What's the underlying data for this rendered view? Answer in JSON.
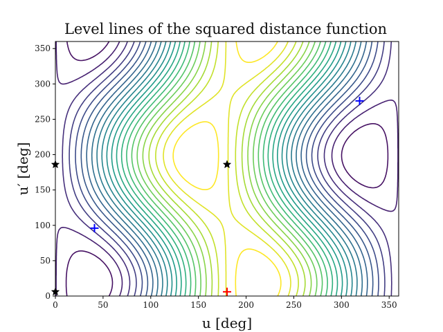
{
  "chart_data": {
    "type": "contour",
    "title": "Level lines of the squared distance function",
    "xlabel": "u [deg]",
    "ylabel": "u′ [deg]",
    "xlim": [
      0,
      360
    ],
    "ylim": [
      0,
      360
    ],
    "xticks": [
      0,
      50,
      100,
      150,
      200,
      250,
      300,
      350
    ],
    "yticks": [
      0,
      50,
      100,
      150,
      200,
      250,
      300,
      350
    ],
    "colormap": "viridis",
    "level_count": 22,
    "grid": false,
    "markers": [
      {
        "kind": "plus",
        "color": "#0000ff",
        "x": 41,
        "y": 96
      },
      {
        "kind": "plus",
        "color": "#0000ff",
        "x": 319,
        "y": 276
      },
      {
        "kind": "plus",
        "color": "#ff0000",
        "x": 180,
        "y": 6
      },
      {
        "kind": "star",
        "color": "#000000",
        "x": 180,
        "y": 186
      },
      {
        "kind": "star",
        "color": "#000000",
        "x": 0,
        "y": 186
      },
      {
        "kind": "star",
        "color": "#000000",
        "x": 0,
        "y": 6
      }
    ]
  }
}
